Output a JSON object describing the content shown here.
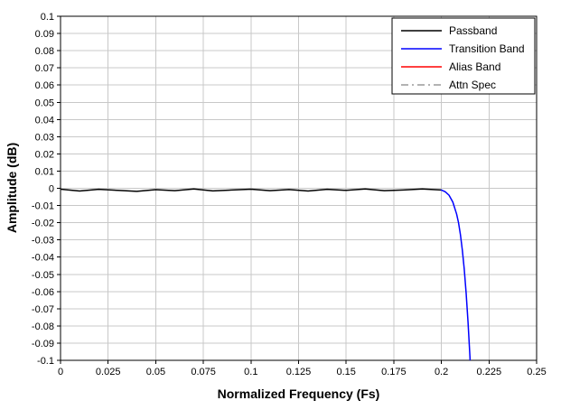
{
  "chart_data": {
    "type": "line",
    "title": "",
    "xlabel": "Normalized Frequency (Fs)",
    "ylabel": "Amplitude (dB)",
    "xlim": [
      0,
      0.25
    ],
    "ylim": [
      -0.1,
      0.1
    ],
    "xticks": [
      0,
      0.025,
      0.05,
      0.075,
      0.1,
      0.125,
      0.15,
      0.175,
      0.2,
      0.225,
      0.25
    ],
    "xtick_labels": [
      "0",
      "0.025",
      "0.05",
      "0.075",
      "0.1",
      "0.125",
      "0.15",
      "0.175",
      "0.2",
      "0.225",
      "0.25"
    ],
    "yticks": [
      0.1,
      0.09,
      0.08,
      0.07,
      0.06,
      0.05,
      0.04,
      0.03,
      0.02,
      0.01,
      0,
      -0.01,
      -0.02,
      -0.03,
      -0.04,
      -0.05,
      -0.06,
      -0.07,
      -0.08,
      -0.09,
      -0.1
    ],
    "ytick_labels": [
      "0.1",
      "0.09",
      "0.08",
      "0.07",
      "0.06",
      "0.05",
      "0.04",
      "0.03",
      "0.02",
      "0.01",
      "0",
      "-0.01",
      "-0.02",
      "-0.03",
      "-0.04",
      "-0.05",
      "-0.06",
      "-0.07",
      "-0.08",
      "-0.09",
      "-0.1"
    ],
    "grid": true,
    "legend_position": "top-right",
    "series": [
      {
        "name": "Passband",
        "color": "#000000",
        "dash": "solid",
        "points": [
          [
            0,
            -0.0005
          ],
          [
            0.01,
            -0.0016
          ],
          [
            0.02,
            -0.0006
          ],
          [
            0.03,
            -0.0012
          ],
          [
            0.04,
            -0.0018
          ],
          [
            0.05,
            -0.0008
          ],
          [
            0.06,
            -0.0014
          ],
          [
            0.07,
            -0.0004
          ],
          [
            0.08,
            -0.0015
          ],
          [
            0.09,
            -0.001
          ],
          [
            0.1,
            -0.0005
          ],
          [
            0.11,
            -0.0014
          ],
          [
            0.12,
            -0.0007
          ],
          [
            0.13,
            -0.0016
          ],
          [
            0.14,
            -0.0006
          ],
          [
            0.15,
            -0.0012
          ],
          [
            0.16,
            -0.0004
          ],
          [
            0.17,
            -0.0014
          ],
          [
            0.18,
            -0.001
          ],
          [
            0.19,
            -0.0004
          ],
          [
            0.2,
            -0.001
          ]
        ]
      },
      {
        "name": "Transition Band",
        "color": "#0000ff",
        "dash": "solid",
        "points": [
          [
            0.2,
            -0.001
          ],
          [
            0.202,
            -0.002
          ],
          [
            0.204,
            -0.004
          ],
          [
            0.206,
            -0.008
          ],
          [
            0.208,
            -0.015
          ],
          [
            0.209,
            -0.02
          ],
          [
            0.21,
            -0.027
          ],
          [
            0.211,
            -0.036
          ],
          [
            0.212,
            -0.047
          ],
          [
            0.213,
            -0.061
          ],
          [
            0.214,
            -0.078
          ],
          [
            0.215,
            -0.098
          ],
          [
            0.2155,
            -0.112
          ]
        ]
      },
      {
        "name": "Alias Band",
        "color": "#ff0000",
        "dash": "solid",
        "points": []
      },
      {
        "name": "Attn Spec",
        "color": "#9a9a9a",
        "dash": "dash-dot",
        "points": []
      }
    ]
  },
  "colors": {
    "background": "#ffffff",
    "grid": "#c8c8c8",
    "axis": "#000000",
    "legend_border": "#000000",
    "legend_fill": "#ffffff"
  }
}
